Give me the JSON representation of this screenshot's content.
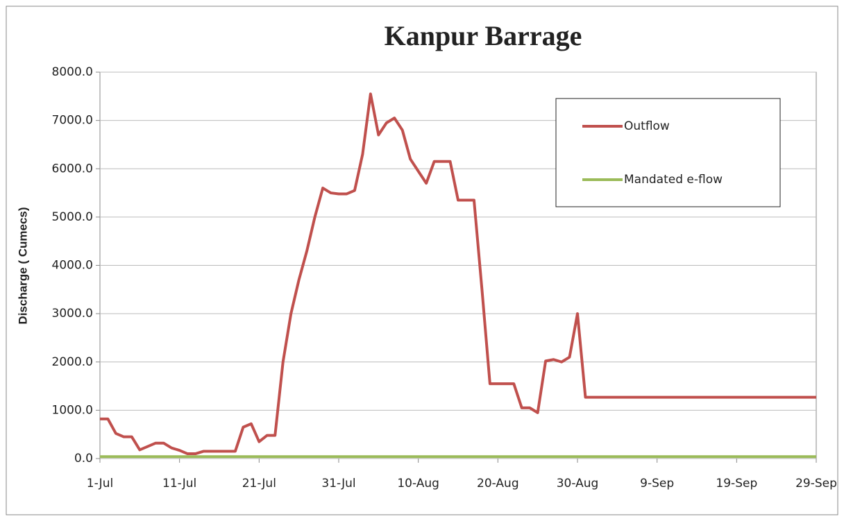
{
  "chart_data": {
    "type": "line",
    "title": "Kanpur Barrage",
    "y_label": "Discharge ( Cumecs)",
    "categories": [
      "1-Jul",
      null,
      null,
      null,
      null,
      null,
      null,
      null,
      null,
      null,
      "11-Jul",
      null,
      null,
      null,
      null,
      null,
      null,
      null,
      null,
      null,
      "21-Jul",
      null,
      null,
      null,
      null,
      null,
      null,
      null,
      null,
      null,
      "31-Jul",
      null,
      null,
      null,
      null,
      null,
      null,
      null,
      null,
      null,
      "10-Aug",
      null,
      null,
      null,
      null,
      null,
      null,
      null,
      null,
      null,
      "20-Aug",
      null,
      null,
      null,
      null,
      null,
      null,
      null,
      null,
      null,
      "30-Aug",
      null,
      null,
      null,
      null,
      null,
      null,
      null,
      null,
      null,
      "9-Sep",
      null,
      null,
      null,
      null,
      null,
      null,
      null,
      null,
      null,
      "19-Sep",
      null,
      null,
      null,
      null,
      null,
      null,
      null,
      null,
      null,
      "29-Sep"
    ],
    "series": [
      {
        "name": "Outflow",
        "color": "#c0504d",
        "values": [
          820,
          820,
          520,
          450,
          450,
          180,
          250,
          320,
          320,
          220,
          170,
          100,
          100,
          150,
          150,
          150,
          150,
          150,
          650,
          720,
          350,
          480,
          480,
          2000,
          3000,
          3700,
          4300,
          5000,
          5600,
          5500,
          5480,
          5480,
          5550,
          6300,
          7550,
          6700,
          6950,
          7050,
          6800,
          6200,
          5950,
          5700,
          6150,
          6150,
          6150,
          5350,
          5350,
          5350,
          3500,
          1550,
          1550,
          1550,
          1550,
          1050,
          1050,
          950,
          2020,
          2050,
          2000,
          2100,
          3000,
          1270,
          1270,
          1270,
          1270,
          1270,
          1270,
          1270,
          1270,
          1270,
          1270,
          1270,
          1270,
          1270,
          1270,
          1270,
          1270,
          1270,
          1270,
          1270,
          1270,
          1270,
          1270,
          1270,
          1270,
          1270,
          1270,
          1270,
          1270,
          1270,
          1270
        ]
      },
      {
        "name": "Mandated e-flow",
        "color": "#9bbb59",
        "values": [
          40,
          40,
          40,
          40,
          40,
          40,
          40,
          40,
          40,
          40,
          40,
          40,
          40,
          40,
          40,
          40,
          40,
          40,
          40,
          40,
          40,
          40,
          40,
          40,
          40,
          40,
          40,
          40,
          40,
          40,
          40,
          40,
          40,
          40,
          40,
          40,
          40,
          40,
          40,
          40,
          40,
          40,
          40,
          40,
          40,
          40,
          40,
          40,
          40,
          40,
          40,
          40,
          40,
          40,
          40,
          40,
          40,
          40,
          40,
          40,
          40,
          40,
          40,
          40,
          40,
          40,
          40,
          40,
          40,
          40,
          40,
          40,
          40,
          40,
          40,
          40,
          40,
          40,
          40,
          40,
          40,
          40,
          40,
          40,
          40,
          40,
          40,
          40,
          40,
          40,
          40
        ]
      }
    ],
    "ylim": [
      0,
      8000
    ],
    "yticks": [
      {
        "value": 0,
        "label": "0.0"
      },
      {
        "value": 1000,
        "label": "1000.0"
      },
      {
        "value": 2000,
        "label": "2000.0"
      },
      {
        "value": 3000,
        "label": "3000.0"
      },
      {
        "value": 4000,
        "label": "4000.0"
      },
      {
        "value": 5000,
        "label": "5000.0"
      },
      {
        "value": 6000,
        "label": "6000.0"
      },
      {
        "value": 7000,
        "label": "7000.0"
      },
      {
        "value": 8000,
        "label": "8000.0"
      }
    ],
    "grid": true,
    "legend": "upper right"
  }
}
